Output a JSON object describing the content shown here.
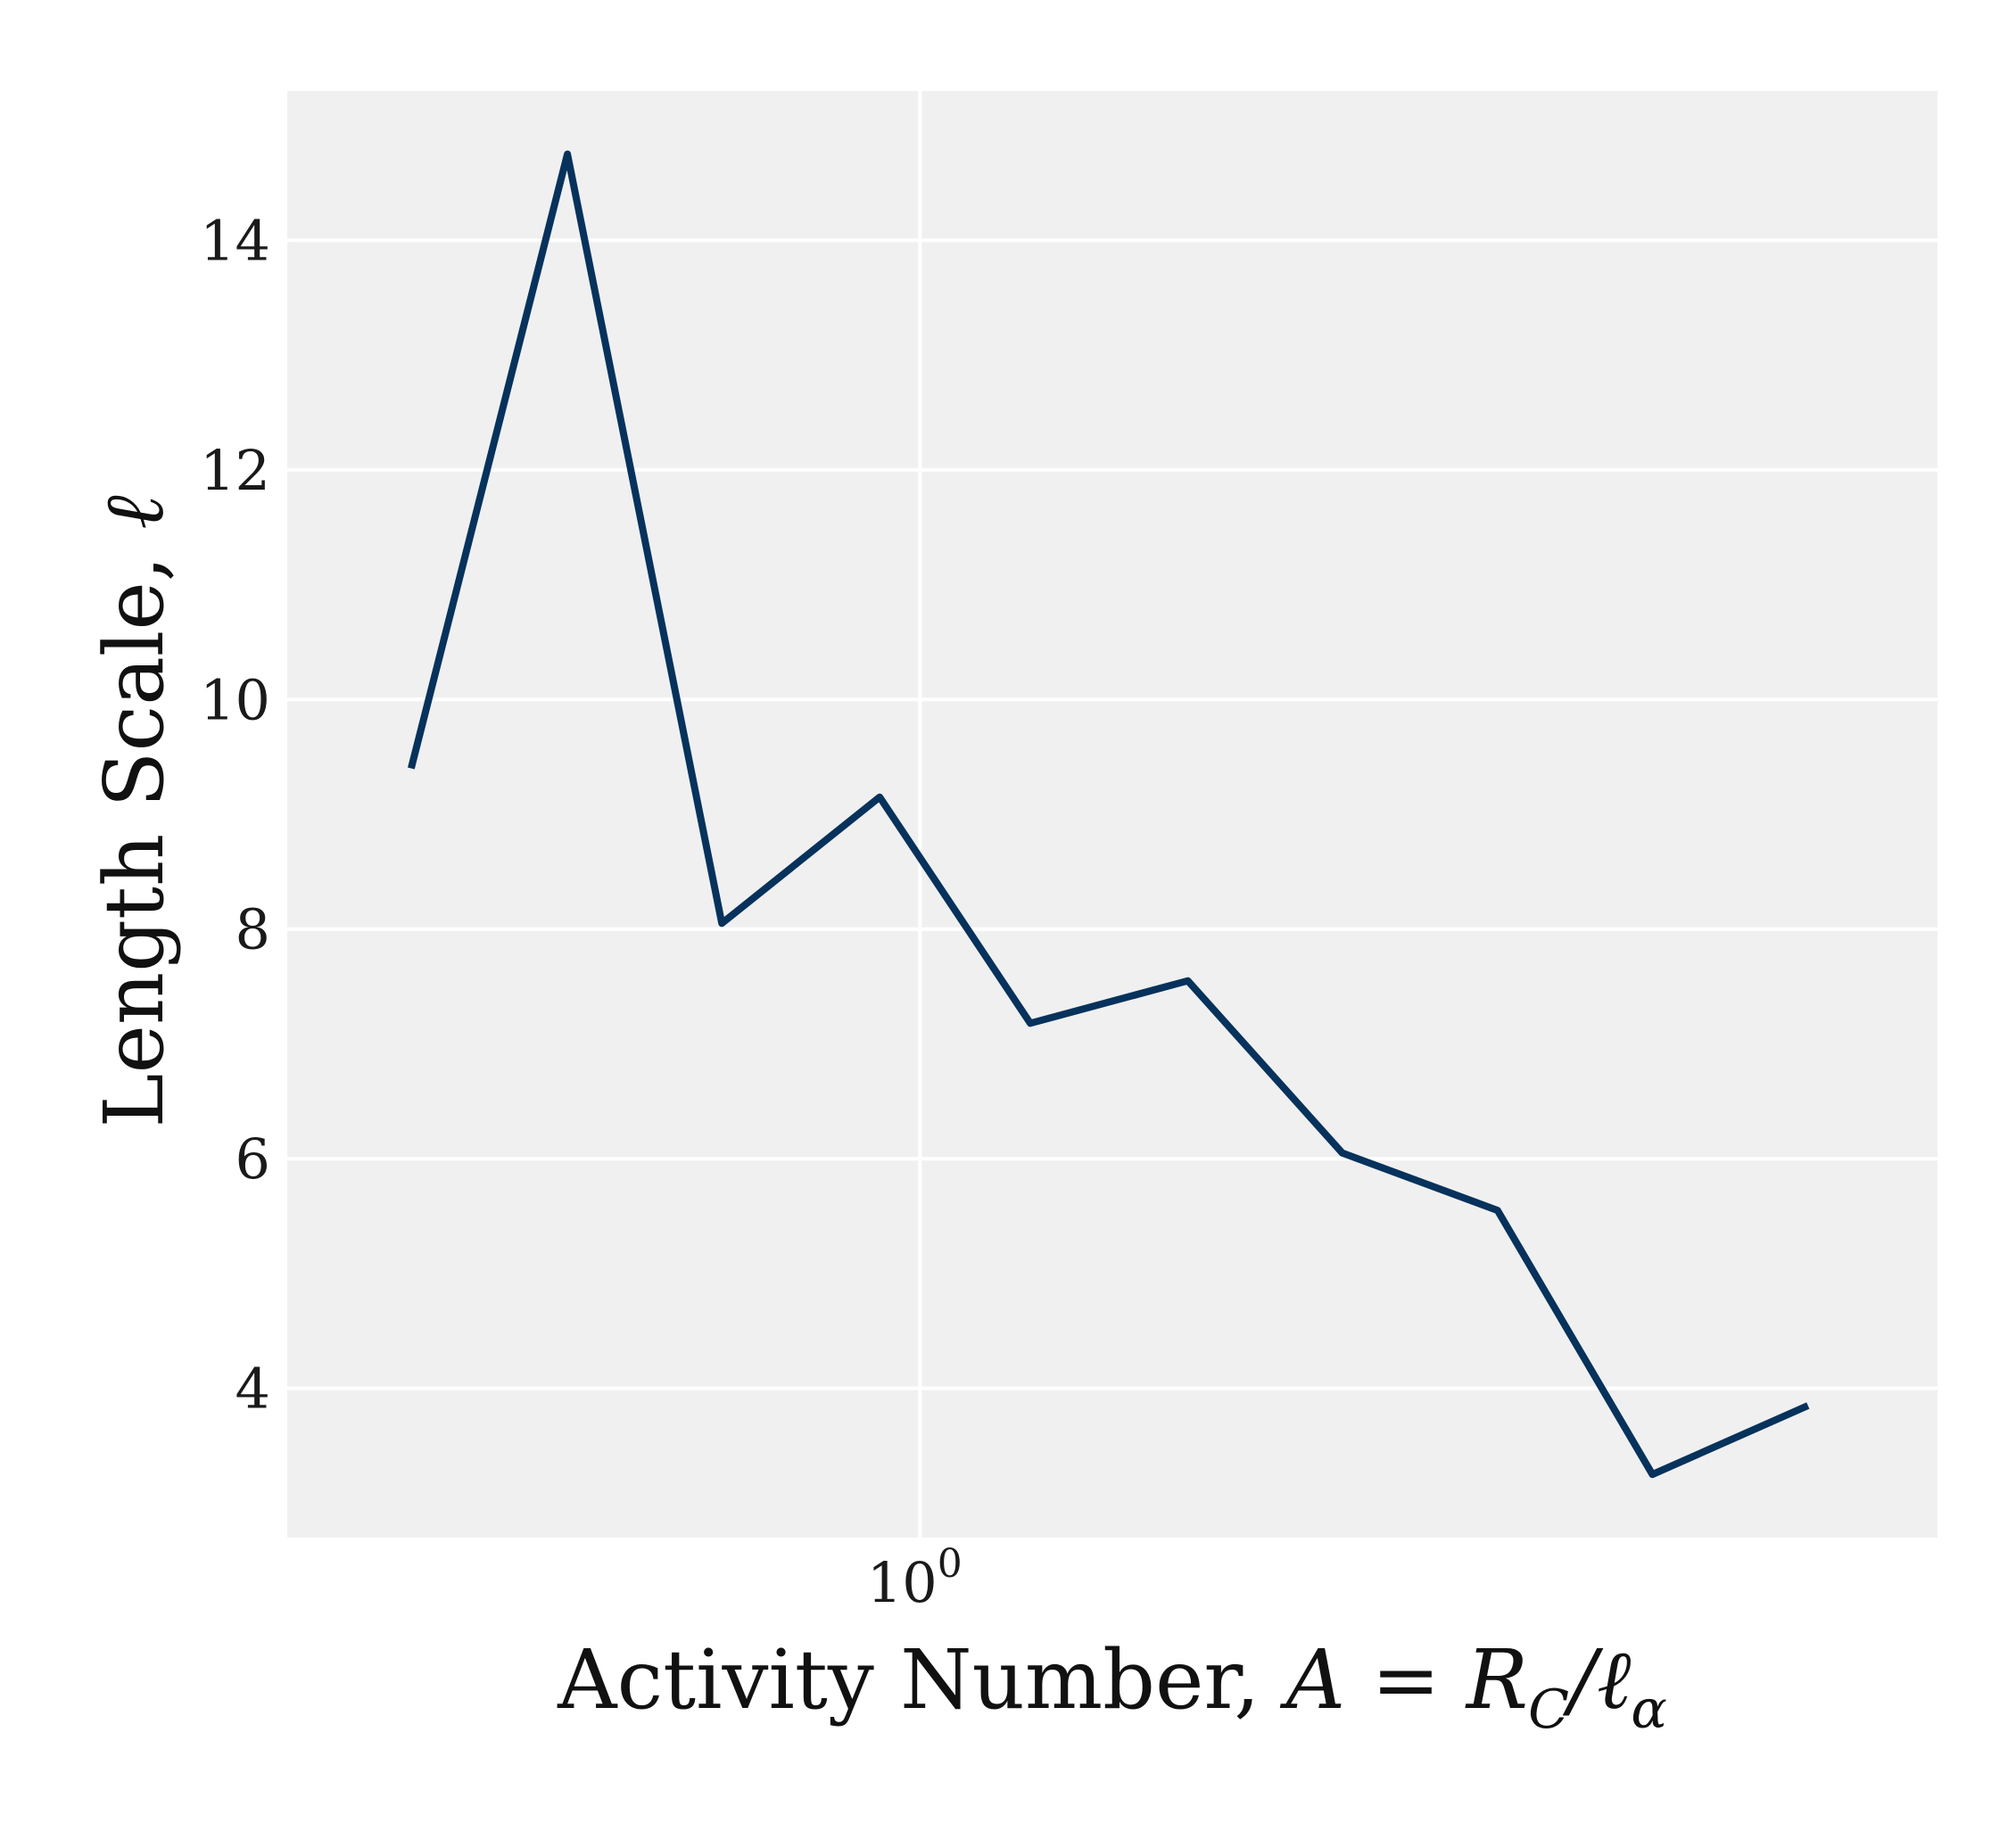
{
  "chart_data": {
    "type": "line",
    "x_scale": "log",
    "xlabel": {
      "text": "Activity Number, ",
      "math": "A = R",
      "math_sub": "C",
      "math_tail": "/ℓ",
      "math_tail_sub": "α"
    },
    "ylabel": {
      "text": "Length Scale, ",
      "math": "ℓ"
    },
    "x_tick_labels": [
      {
        "value": 1,
        "base": "10",
        "exponent": "0"
      }
    ],
    "y_ticks": [
      4,
      6,
      8,
      10,
      12,
      14
    ],
    "xlim": [
      0.32,
      6.25
    ],
    "ylim": [
      2.7,
      15.3
    ],
    "grid": true,
    "colors": {
      "line": "#06325c",
      "background": "#f0f0f0",
      "grid": "#ffffff"
    },
    "series": [
      {
        "x": [
          0.4,
          0.53,
          0.7,
          0.93,
          1.22,
          1.62,
          2.14,
          2.83,
          3.74,
          4.95
        ],
        "y": [
          9.4,
          14.75,
          8.05,
          9.15,
          7.18,
          7.55,
          6.05,
          5.55,
          3.25,
          3.85
        ]
      }
    ]
  }
}
